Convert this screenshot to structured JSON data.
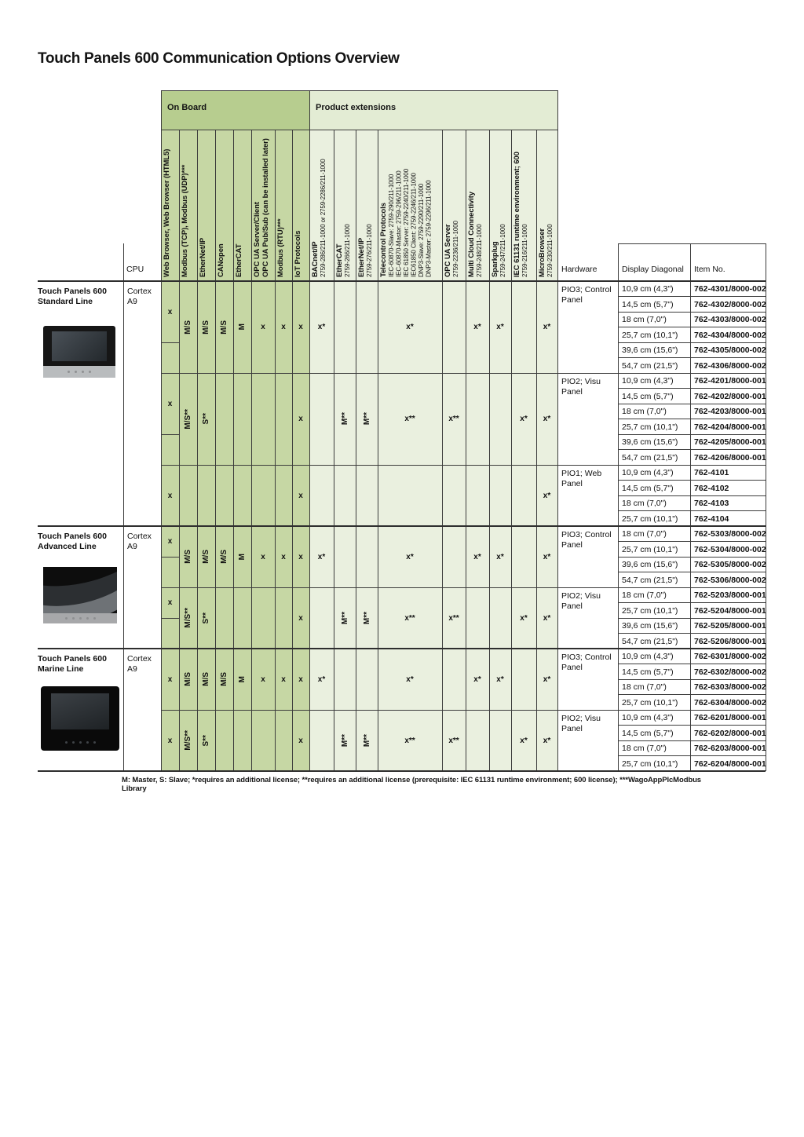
{
  "title": "Touch Panels 600 Communication Options Overview",
  "groups": {
    "on_board": "On Board",
    "product_extensions": "Product extensions"
  },
  "header_labels": {
    "cpu": "CPU",
    "hardware": "Hardware",
    "display": "Display Diagonal",
    "item": "Item No."
  },
  "palette": {
    "on_board_band": "#b7cd8f",
    "on_board_cell": "#c6d7a4",
    "ext_band": "#e3ecd4",
    "ext_cell": "#eaf0df",
    "grid_border": "#3c3c3c",
    "section_border": "#2e2e2e"
  },
  "columns": [
    {
      "key": "web_browser",
      "group": "on_board",
      "title_lines": [
        "Web Browser, Web Browser (HTML5)"
      ],
      "sub_lines": []
    },
    {
      "key": "modbus_tcp_udp",
      "group": "on_board",
      "title_lines": [
        "Modbus (TCP), Modbus (UDP)***"
      ],
      "sub_lines": []
    },
    {
      "key": "ethernet_ip",
      "group": "on_board",
      "title_lines": [
        "EtherNet/IP"
      ],
      "sub_lines": []
    },
    {
      "key": "canopen",
      "group": "on_board",
      "title_lines": [
        "CANopen"
      ],
      "sub_lines": []
    },
    {
      "key": "ethercat",
      "group": "on_board",
      "title_lines": [
        "EtherCAT"
      ],
      "sub_lines": []
    },
    {
      "key": "opcua",
      "group": "on_board",
      "title_lines": [
        "OPC UA Server/Client",
        "OPC UA Pub/Sub (can be installed later)"
      ],
      "sub_lines": []
    },
    {
      "key": "modbus_rtu",
      "group": "on_board",
      "title_lines": [
        "Modbus (RTU)***"
      ],
      "sub_lines": []
    },
    {
      "key": "iot",
      "group": "on_board",
      "title_lines": [
        "IoT Protocols"
      ],
      "sub_lines": []
    },
    {
      "key": "bacnet",
      "group": "ext",
      "title_lines": [
        "BACnet/IP"
      ],
      "sub_lines": [
        "2759-286/211-1000 or 2759-2286/211-1000"
      ]
    },
    {
      "key": "ethercat_ext",
      "group": "ext",
      "title_lines": [
        "EtherCAT"
      ],
      "sub_lines": [
        "2759-266/211-1000"
      ]
    },
    {
      "key": "ethernet_ip_ext",
      "group": "ext",
      "title_lines": [
        "EtherNet/IP"
      ],
      "sub_lines": [
        "2759-276/211-1000"
      ]
    },
    {
      "key": "telecontrol",
      "group": "ext",
      "title_lines": [
        "Telecontrol Protocols"
      ],
      "sub_lines": [
        "IEC-60870-Slave: 2759-290/211-1000",
        "IEC-60870-Master: 2759-296/211-1000",
        "IEC 61850 Server: 2759-2240/211-1000",
        "IEC61850 Client: 2759-2246/211-1000",
        "DNP3-Slave: 2759-2290/211-1000",
        "DNP3-Master: 2759-2296/211-1000"
      ]
    },
    {
      "key": "opcua_server",
      "group": "ext",
      "title_lines": [
        "OPC UA Server"
      ],
      "sub_lines": [
        "2759-2236/211-1000"
      ]
    },
    {
      "key": "multicloud",
      "group": "ext",
      "title_lines": [
        "Multi Cloud Connectivity"
      ],
      "sub_lines": [
        "2759-248/211-1000"
      ]
    },
    {
      "key": "sparkplug",
      "group": "ext",
      "title_lines": [
        "Sparkplug"
      ],
      "sub_lines": [
        "2759-247/211-1000"
      ]
    },
    {
      "key": "iec61131",
      "group": "ext",
      "title_lines": [
        "IEC 61131 runtime environment; 600"
      ],
      "sub_lines": [
        "2759-216/211-1000"
      ]
    },
    {
      "key": "microbrowser",
      "group": "ext",
      "title_lines": [
        "MicroBrowser"
      ],
      "sub_lines": [
        "2759-230/211-1000"
      ]
    }
  ],
  "sections": [
    {
      "name_lines": [
        "Touch Panels 600",
        "Standard Line"
      ],
      "cpu_lines": [
        "Cortex",
        "A9"
      ],
      "photo": "standard",
      "blocks": [
        {
          "hardware": "PIO3; Control Panel",
          "rows": [
            {
              "display": "10,9 cm (4,3\")",
              "item": "762-4301/8000-002"
            },
            {
              "display": "14,5 cm (5,7\")",
              "item": "762-4302/8000-002"
            },
            {
              "display": "18 cm (7,0\")",
              "item": "762-4303/8000-002"
            },
            {
              "display": "25,7 cm (10,1\")",
              "item": "762-4304/8000-002"
            },
            {
              "display": "39,6 cm (15,6\")",
              "item": "762-4305/8000-002"
            },
            {
              "display": "54,7 cm (21,5\")",
              "item": "762-4306/8000-002"
            }
          ],
          "values": [
            {
              "col": "web_browser",
              "text": "x",
              "split": 4
            },
            {
              "col": "modbus_tcp_udp",
              "text": "M/S",
              "rotated": true
            },
            {
              "col": "ethernet_ip",
              "text": "M/S",
              "rotated": true
            },
            {
              "col": "canopen",
              "text": "M/S",
              "rotated": true
            },
            {
              "col": "ethercat",
              "text": "M",
              "rotated": true
            },
            {
              "col": "opcua",
              "text": "x"
            },
            {
              "col": "modbus_rtu",
              "text": "x"
            },
            {
              "col": "iot",
              "text": "x"
            },
            {
              "col": "bacnet",
              "text": "x*"
            },
            {
              "col": "telecontrol",
              "text": "x*"
            },
            {
              "col": "multicloud",
              "text": "x*"
            },
            {
              "col": "sparkplug",
              "text": "x*"
            },
            {
              "col": "microbrowser",
              "text": "x*"
            }
          ]
        },
        {
          "hardware": "PIO2; Visu Panel",
          "rows": [
            {
              "display": "10,9 cm (4,3\")",
              "item": "762-4201/8000-001"
            },
            {
              "display": "14,5 cm (5,7\")",
              "item": "762-4202/8000-001"
            },
            {
              "display": "18 cm (7,0\")",
              "item": "762-4203/8000-001"
            },
            {
              "display": "25,7 cm (10,1\")",
              "item": "762-4204/8000-001"
            },
            {
              "display": "39,6 cm (15,6\")",
              "item": "762-4205/8000-001"
            },
            {
              "display": "54,7 cm (21,5\")",
              "item": "762-4206/8000-001"
            }
          ],
          "values": [
            {
              "col": "web_browser",
              "text": "x",
              "split": 4
            },
            {
              "col": "modbus_tcp_udp",
              "text": "M/S**",
              "rotated": true
            },
            {
              "col": "ethernet_ip",
              "text": "S**",
              "rotated": true
            },
            {
              "col": "iot",
              "text": "x"
            },
            {
              "col": "ethercat_ext",
              "text": "M**",
              "rotated": true
            },
            {
              "col": "ethernet_ip_ext",
              "text": "M**",
              "rotated": true
            },
            {
              "col": "telecontrol",
              "text": "x**"
            },
            {
              "col": "opcua_server",
              "text": "x**"
            },
            {
              "col": "iec61131",
              "text": "x*"
            },
            {
              "col": "microbrowser",
              "text": "x*"
            }
          ]
        },
        {
          "hardware": "PIO1; Web Panel",
          "rows": [
            {
              "display": "10,9 cm (4,3\")",
              "item": "762-4101"
            },
            {
              "display": "14,5 cm (5,7\")",
              "item": "762-4102"
            },
            {
              "display": "18 cm (7,0\")",
              "item": "762-4103"
            },
            {
              "display": "25,7 cm (10,1\")",
              "item": "762-4104"
            }
          ],
          "values": [
            {
              "col": "web_browser",
              "text": "x"
            },
            {
              "col": "iot",
              "text": "x"
            },
            {
              "col": "microbrowser",
              "text": "x*"
            }
          ]
        }
      ]
    },
    {
      "name_lines": [
        "Touch Panels 600",
        "Advanced Line"
      ],
      "cpu_lines": [
        "Cortex",
        "A9"
      ],
      "photo": "advanced",
      "blocks": [
        {
          "hardware": "PIO3; Control Panel",
          "rows": [
            {
              "display": "18 cm (7,0\")",
              "item": "762-5303/8000-002"
            },
            {
              "display": "25,7 cm (10,1\")",
              "item": "762-5304/8000-002"
            },
            {
              "display": "39,6 cm (15,6\")",
              "item": "762-5305/8000-002"
            },
            {
              "display": "54,7 cm (21,5\")",
              "item": "762-5306/8000-002"
            }
          ],
          "values": [
            {
              "col": "web_browser",
              "text": "x",
              "split": 2
            },
            {
              "col": "modbus_tcp_udp",
              "text": "M/S",
              "rotated": true
            },
            {
              "col": "ethernet_ip",
              "text": "M/S",
              "rotated": true
            },
            {
              "col": "canopen",
              "text": "M/S",
              "rotated": true
            },
            {
              "col": "ethercat",
              "text": "M",
              "rotated": true
            },
            {
              "col": "opcua",
              "text": "x"
            },
            {
              "col": "modbus_rtu",
              "text": "x"
            },
            {
              "col": "iot",
              "text": "x"
            },
            {
              "col": "bacnet",
              "text": "x*"
            },
            {
              "col": "telecontrol",
              "text": "x*"
            },
            {
              "col": "multicloud",
              "text": "x*"
            },
            {
              "col": "sparkplug",
              "text": "x*"
            },
            {
              "col": "microbrowser",
              "text": "x*"
            }
          ]
        },
        {
          "hardware": "PIO2; Visu Panel",
          "rows": [
            {
              "display": "18 cm (7,0\")",
              "item": "762-5203/8000-001"
            },
            {
              "display": "25,7 cm (10,1\")",
              "item": "762-5204/8000-001"
            },
            {
              "display": "39,6 cm (15,6\")",
              "item": "762-5205/8000-001"
            },
            {
              "display": "54,7 cm (21,5\")",
              "item": "762-5206/8000-001"
            }
          ],
          "values": [
            {
              "col": "web_browser",
              "text": "x",
              "split": 2
            },
            {
              "col": "modbus_tcp_udp",
              "text": "M/S**",
              "rotated": true
            },
            {
              "col": "ethernet_ip",
              "text": "S**",
              "rotated": true
            },
            {
              "col": "iot",
              "text": "x"
            },
            {
              "col": "ethercat_ext",
              "text": "M**",
              "rotated": true
            },
            {
              "col": "ethernet_ip_ext",
              "text": "M**",
              "rotated": true
            },
            {
              "col": "telecontrol",
              "text": "x**"
            },
            {
              "col": "opcua_server",
              "text": "x**"
            },
            {
              "col": "iec61131",
              "text": "x*"
            },
            {
              "col": "microbrowser",
              "text": "x*"
            }
          ]
        }
      ]
    },
    {
      "name_lines": [
        "Touch Panels 600",
        "Marine Line"
      ],
      "cpu_lines": [
        "Cortex",
        "A9"
      ],
      "photo": "marine",
      "blocks": [
        {
          "hardware": "PIO3; Control Panel",
          "rows": [
            {
              "display": "10,9 cm (4,3\")",
              "item": "762-6301/8000-002"
            },
            {
              "display": "14,5 cm (5,7\")",
              "item": "762-6302/8000-002"
            },
            {
              "display": "18 cm (7,0\")",
              "item": "762-6303/8000-002"
            },
            {
              "display": "25,7 cm (10,1\")",
              "item": "762-6304/8000-002"
            }
          ],
          "values": [
            {
              "col": "web_browser",
              "text": "x"
            },
            {
              "col": "modbus_tcp_udp",
              "text": "M/S",
              "rotated": true
            },
            {
              "col": "ethernet_ip",
              "text": "M/S",
              "rotated": true
            },
            {
              "col": "canopen",
              "text": "M/S",
              "rotated": true
            },
            {
              "col": "ethercat",
              "text": "M",
              "rotated": true
            },
            {
              "col": "opcua",
              "text": "x"
            },
            {
              "col": "modbus_rtu",
              "text": "x"
            },
            {
              "col": "iot",
              "text": "x"
            },
            {
              "col": "bacnet",
              "text": "x*"
            },
            {
              "col": "telecontrol",
              "text": "x*"
            },
            {
              "col": "multicloud",
              "text": "x*"
            },
            {
              "col": "sparkplug",
              "text": "x*"
            },
            {
              "col": "microbrowser",
              "text": "x*"
            }
          ]
        },
        {
          "hardware": "PIO2; Visu Panel",
          "rows": [
            {
              "display": "10,9 cm (4,3\")",
              "item": "762-6201/8000-001"
            },
            {
              "display": "14,5 cm (5,7\")",
              "item": "762-6202/8000-001"
            },
            {
              "display": "18 cm (7,0\")",
              "item": "762-6203/8000-001"
            },
            {
              "display": "25,7 cm (10,1\")",
              "item": "762-6204/8000-001"
            }
          ],
          "values": [
            {
              "col": "web_browser",
              "text": "x"
            },
            {
              "col": "modbus_tcp_udp",
              "text": "M/S**",
              "rotated": true
            },
            {
              "col": "ethernet_ip",
              "text": "S**",
              "rotated": true
            },
            {
              "col": "iot",
              "text": "x"
            },
            {
              "col": "ethercat_ext",
              "text": "M**",
              "rotated": true
            },
            {
              "col": "ethernet_ip_ext",
              "text": "M**",
              "rotated": true
            },
            {
              "col": "telecontrol",
              "text": "x**"
            },
            {
              "col": "opcua_server",
              "text": "x**"
            },
            {
              "col": "iec61131",
              "text": "x*"
            },
            {
              "col": "microbrowser",
              "text": "x*"
            }
          ]
        }
      ]
    }
  ],
  "footnote": "M: Master, S: Slave; *requires an additional license; **requires an additional license (prerequisite: IEC 61131 runtime environment; 600 license); ***WagoAppPlcModbus Library"
}
